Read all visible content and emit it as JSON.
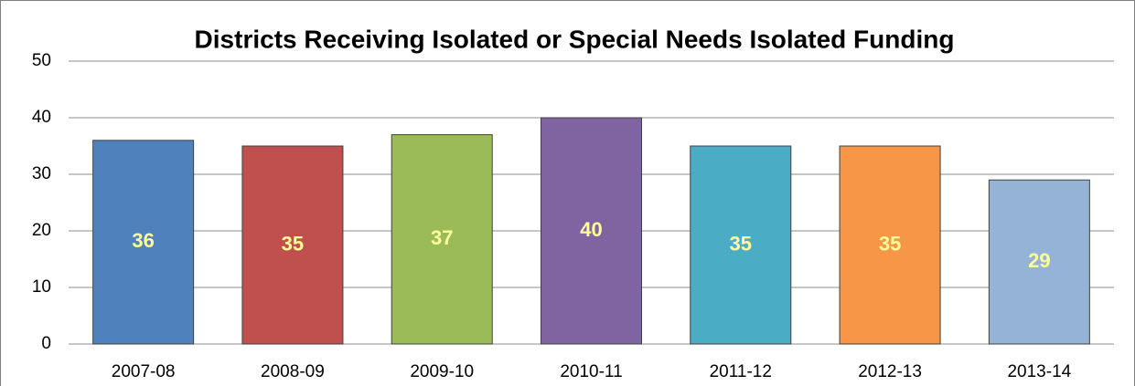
{
  "chart_data": {
    "type": "bar",
    "title": "Districts Receiving Isolated or Special Needs Isolated Funding",
    "categories": [
      "2007-08",
      "2008-09",
      "2009-10",
      "2010-11",
      "2011-12",
      "2012-13",
      "2013-14"
    ],
    "values": [
      36,
      35,
      37,
      40,
      35,
      35,
      29
    ],
    "colors": [
      "#4f81bd",
      "#c0504d",
      "#9bbb59",
      "#8064a2",
      "#4bacc6",
      "#f79646",
      "#95b3d7"
    ],
    "ylim": [
      0,
      50
    ],
    "yticks": [
      0,
      10,
      20,
      30,
      40,
      50
    ],
    "grid": true
  }
}
